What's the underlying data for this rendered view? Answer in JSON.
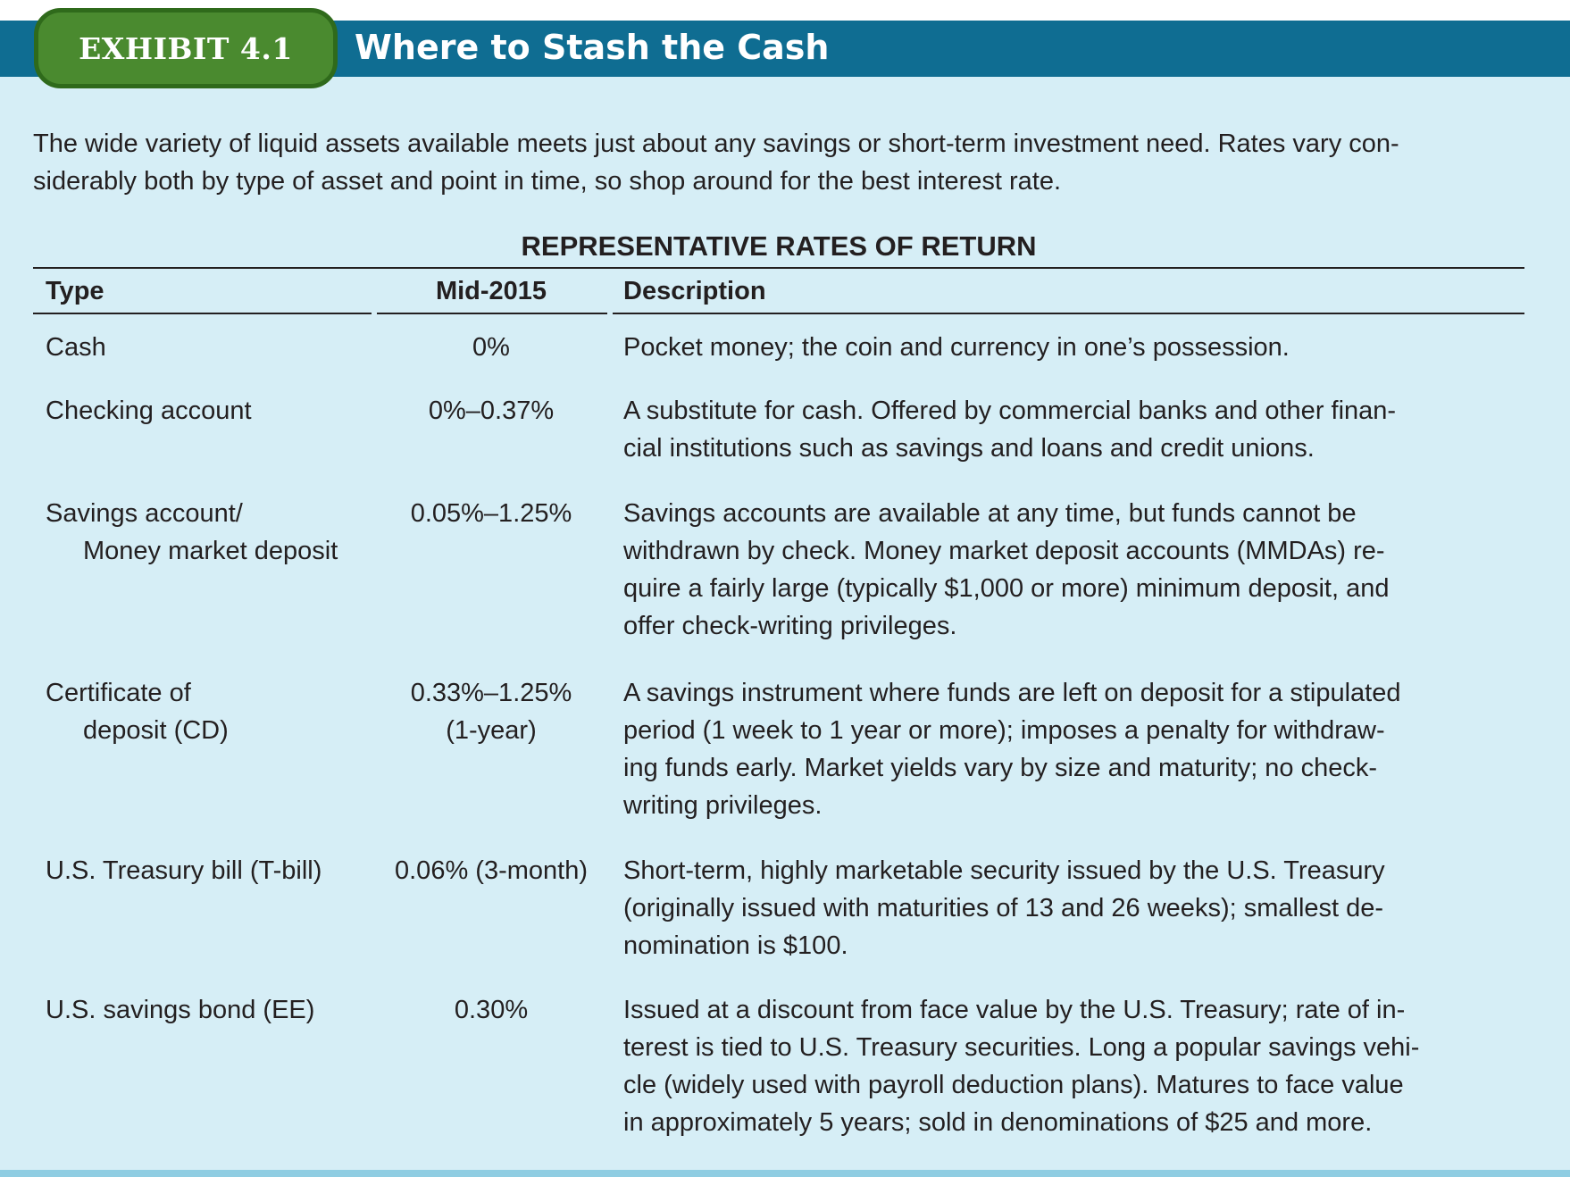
{
  "header": {
    "exhibit_label": "EXHIBIT 4.1",
    "title": "Where to Stash the Cash"
  },
  "intro": {
    "line1": "The wide variety of liquid assets available meets just about any savings or short-term investment need. Rates vary con-",
    "line2": "siderably both by type of asset and point in time, so shop around for the best interest rate."
  },
  "table": {
    "heading": "REPRESENTATIVE RATES OF RETURN",
    "columns": {
      "type": "Type",
      "rate": "Mid-2015",
      "description": "Description"
    },
    "rows": [
      {
        "type": [
          "Cash"
        ],
        "rate": [
          "0%"
        ],
        "description": [
          "Pocket money; the coin and currency in one’s possession."
        ]
      },
      {
        "type": [
          "Checking account"
        ],
        "rate": [
          "0%–0.37%"
        ],
        "description": [
          "A substitute for cash. Offered by commercial banks and other finan-",
          "cial institutions such as savings and loans and credit unions."
        ]
      },
      {
        "type": [
          "Savings account/",
          "Money market deposit"
        ],
        "rate": [
          "0.05%–1.25%"
        ],
        "description": [
          "Savings accounts are available at any time, but funds cannot be",
          "withdrawn by check. Money market deposit accounts (MMDAs) re-",
          "quire a fairly large (typically $1,000 or more) minimum deposit, and",
          "offer check-writing privileges."
        ]
      },
      {
        "type": [
          "Certificate of",
          "deposit (CD)"
        ],
        "rate": [
          "0.33%–1.25%",
          "(1-year)"
        ],
        "description": [
          "A savings instrument where funds are left on deposit for a stipulated",
          "period (1 week to 1 year or more); imposes a penalty for withdraw-",
          "ing funds early. Market yields vary by size and maturity; no check-",
          "writing privileges."
        ]
      },
      {
        "type": [
          "U.S. Treasury bill (T-bill)"
        ],
        "rate": [
          "0.06% (3-month)"
        ],
        "description": [
          "Short-term, highly marketable security issued by the U.S. Treasury",
          "(originally issued with maturities of 13 and 26 weeks); smallest de-",
          "nomination is $100."
        ]
      },
      {
        "type": [
          "U.S. savings bond (EE)"
        ],
        "rate": [
          "0.30%"
        ],
        "description": [
          "Issued at a discount from face value by the U.S. Treasury; rate of in-",
          "terest is tied to U.S. Treasury securities. Long a popular savings vehi-",
          "cle (widely used with payroll deduction plans). Matures to face value",
          "in approximately 5 years; sold in denominations of $25 and more."
        ]
      }
    ]
  }
}
